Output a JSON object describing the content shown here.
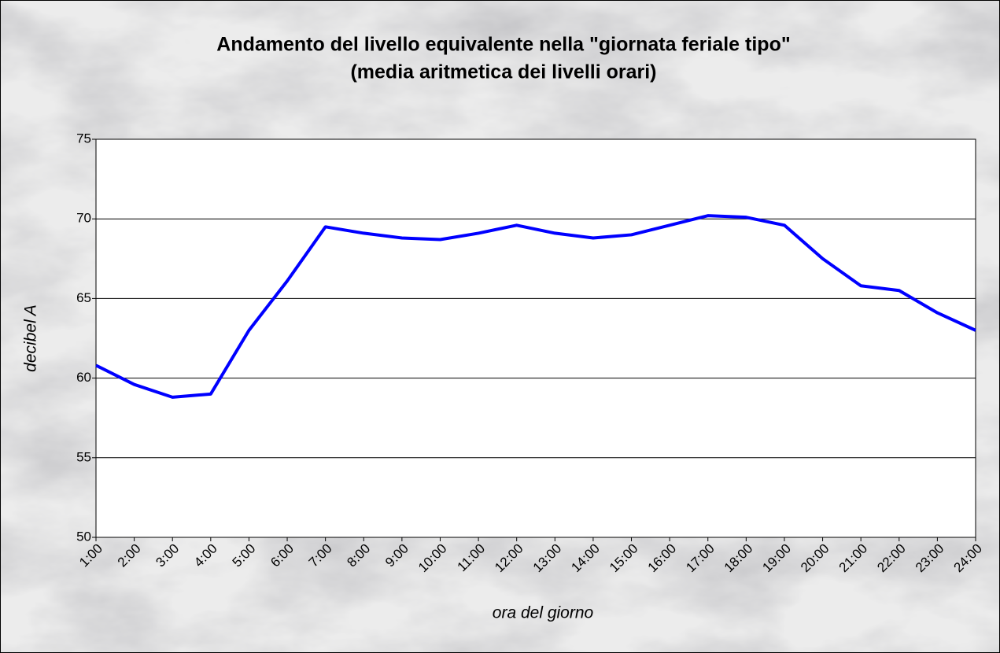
{
  "chart_data": {
    "type": "line",
    "title": "Andamento del livello equivalente nella \"giornata feriale tipo\"",
    "subtitle": "(media aritmetica dei livelli orari)",
    "x_label": "ora del giorno",
    "y_label": "decibel A",
    "categories": [
      "1:00",
      "2:00",
      "3:00",
      "4:00",
      "5:00",
      "6:00",
      "7:00",
      "8:00",
      "9:00",
      "10:00",
      "11:00",
      "12:00",
      "13:00",
      "14:00",
      "15:00",
      "16:00",
      "17:00",
      "18:00",
      "19:00",
      "20:00",
      "21:00",
      "22:00",
      "23:00",
      "24:00"
    ],
    "series": [
      {
        "color": "#0000ff",
        "values": [
          60.8,
          59.6,
          58.8,
          59.0,
          63.0,
          66.1,
          69.5,
          69.1,
          68.8,
          68.7,
          69.1,
          69.6,
          69.1,
          68.8,
          69.0,
          69.6,
          70.2,
          70.1,
          69.6,
          67.5,
          65.8,
          65.5,
          64.1,
          63.0
        ]
      }
    ],
    "ylim": [
      50,
      75
    ],
    "yticks": [
      50,
      55,
      60,
      65,
      70,
      75
    ],
    "grid": true
  }
}
